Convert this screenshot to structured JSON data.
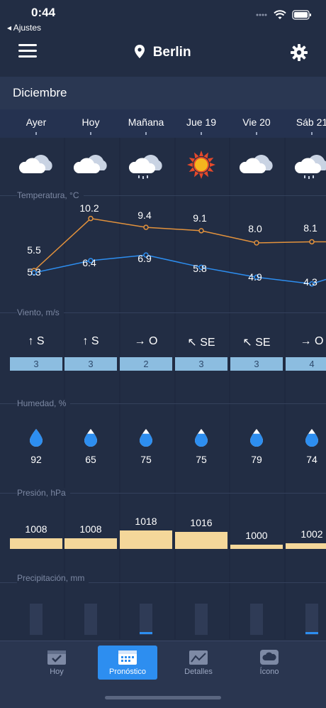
{
  "status": {
    "time": "0:44",
    "back_label": "◂ Ajustes"
  },
  "header": {
    "city": "Berlin"
  },
  "month": "Diciembre",
  "days": [
    "Ayer",
    "Hoy",
    "Mañana",
    "Jue 19",
    "Vie 20",
    "Sáb 21"
  ],
  "weather_icons": [
    "cloudy-icon",
    "cloudy-icon",
    "rain-cloud-icon",
    "sun-icon",
    "cloudy-icon",
    "rain-cloud-icon"
  ],
  "sections": {
    "temperature": "Temperatura, °C",
    "wind": "Viento, m/s",
    "humidity": "Humedad, %",
    "pressure": "Presión, hPa",
    "precipitation": "Precipitación, mm"
  },
  "chart_data": {
    "type": "line",
    "x": [
      "Ayer",
      "Hoy",
      "Mañana",
      "Jue 19",
      "Vie 20",
      "Sáb 21"
    ],
    "series": [
      {
        "values": [
          5.5,
          10.2,
          9.4,
          9.1,
          8.0,
          8.1
        ],
        "color": "#e3923c"
      },
      {
        "values": [
          5.3,
          6.4,
          6.9,
          5.8,
          4.9,
          4.3
        ],
        "color": "#2d8ef0"
      }
    ]
  },
  "wind": {
    "directions": [
      "↑ S",
      "↑ S",
      "→ O",
      "↖ SE",
      "↖ SE",
      "→ O"
    ],
    "speeds": [
      "3",
      "3",
      "2",
      "3",
      "3",
      "4"
    ]
  },
  "humidity": [
    92,
    65,
    75,
    75,
    79,
    74
  ],
  "pressure": [
    1008,
    1008,
    1018,
    1016,
    1000,
    1002
  ],
  "precipitation_fill": [
    0,
    0,
    0.1,
    0,
    0,
    0.1
  ],
  "tabs": [
    {
      "label": "Hoy"
    },
    {
      "label": "Pronóstico"
    },
    {
      "label": "Detalles"
    },
    {
      "label": "Ícono"
    }
  ]
}
